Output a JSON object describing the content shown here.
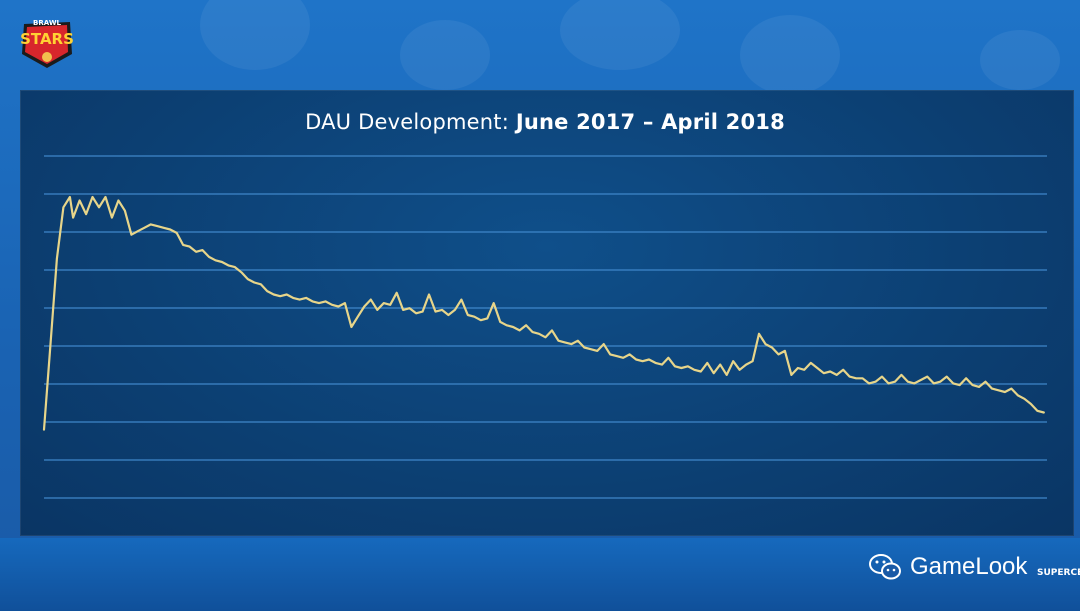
{
  "brand": {
    "logo_line1": "BRAWL",
    "logo_line2": "STARS",
    "watermark": "GameLook",
    "corner_logo": "SUPERCELL"
  },
  "colors": {
    "line": "#e7d58a",
    "grid": "#3f86c9",
    "panel": "#0c3f72"
  },
  "chart_data": {
    "type": "line",
    "title_prefix": "DAU Development: ",
    "title_bold": "June 2017 – April 2018",
    "xlabel": "",
    "ylabel": "",
    "grid": true,
    "gridlines": 10,
    "ylim": [
      0,
      10
    ],
    "xlim": [
      0,
      310
    ],
    "series": [
      {
        "values": [
          [
            0,
            2.0
          ],
          [
            2,
            4.5
          ],
          [
            4,
            7.0
          ],
          [
            6,
            8.5
          ],
          [
            8,
            8.8
          ],
          [
            9,
            8.2
          ],
          [
            11,
            8.7
          ],
          [
            13,
            8.3
          ],
          [
            15,
            8.8
          ],
          [
            17,
            8.5
          ],
          [
            19,
            8.8
          ],
          [
            21,
            8.2
          ],
          [
            23,
            8.7
          ],
          [
            25,
            8.4
          ],
          [
            27,
            7.7
          ],
          [
            29,
            7.8
          ],
          [
            31,
            7.9
          ],
          [
            33,
            8.0
          ],
          [
            35,
            7.95
          ],
          [
            37,
            7.9
          ],
          [
            39,
            7.85
          ],
          [
            41,
            7.75
          ],
          [
            43,
            7.4
          ],
          [
            45,
            7.35
          ],
          [
            47,
            7.2
          ],
          [
            49,
            7.25
          ],
          [
            51,
            7.05
          ],
          [
            53,
            6.95
          ],
          [
            55,
            6.9
          ],
          [
            57,
            6.8
          ],
          [
            59,
            6.75
          ],
          [
            61,
            6.6
          ],
          [
            63,
            6.4
          ],
          [
            65,
            6.3
          ],
          [
            67,
            6.25
          ],
          [
            69,
            6.05
          ],
          [
            71,
            5.95
          ],
          [
            73,
            5.9
          ],
          [
            75,
            5.95
          ],
          [
            77,
            5.85
          ],
          [
            79,
            5.8
          ],
          [
            81,
            5.85
          ],
          [
            83,
            5.75
          ],
          [
            85,
            5.7
          ],
          [
            87,
            5.75
          ],
          [
            89,
            5.65
          ],
          [
            91,
            5.6
          ],
          [
            93,
            5.7
          ],
          [
            95,
            5.0
          ],
          [
            97,
            5.3
          ],
          [
            99,
            5.6
          ],
          [
            101,
            5.8
          ],
          [
            103,
            5.5
          ],
          [
            105,
            5.7
          ],
          [
            107,
            5.65
          ],
          [
            109,
            6.0
          ],
          [
            111,
            5.5
          ],
          [
            113,
            5.55
          ],
          [
            115,
            5.4
          ],
          [
            117,
            5.45
          ],
          [
            119,
            5.95
          ],
          [
            121,
            5.45
          ],
          [
            123,
            5.5
          ],
          [
            125,
            5.35
          ],
          [
            127,
            5.5
          ],
          [
            129,
            5.8
          ],
          [
            131,
            5.35
          ],
          [
            133,
            5.3
          ],
          [
            135,
            5.2
          ],
          [
            137,
            5.25
          ],
          [
            139,
            5.7
          ],
          [
            141,
            5.15
          ],
          [
            143,
            5.05
          ],
          [
            145,
            5.0
          ],
          [
            147,
            4.9
          ],
          [
            149,
            5.05
          ],
          [
            151,
            4.85
          ],
          [
            153,
            4.8
          ],
          [
            155,
            4.7
          ],
          [
            157,
            4.9
          ],
          [
            159,
            4.6
          ],
          [
            161,
            4.55
          ],
          [
            163,
            4.5
          ],
          [
            165,
            4.6
          ],
          [
            167,
            4.4
          ],
          [
            169,
            4.35
          ],
          [
            171,
            4.3
          ],
          [
            173,
            4.5
          ],
          [
            175,
            4.2
          ],
          [
            177,
            4.15
          ],
          [
            179,
            4.1
          ],
          [
            181,
            4.2
          ],
          [
            183,
            4.05
          ],
          [
            185,
            4.0
          ],
          [
            187,
            4.05
          ],
          [
            189,
            3.95
          ],
          [
            191,
            3.9
          ],
          [
            193,
            4.1
          ],
          [
            195,
            3.85
          ],
          [
            197,
            3.8
          ],
          [
            199,
            3.85
          ],
          [
            201,
            3.75
          ],
          [
            203,
            3.7
          ],
          [
            205,
            3.95
          ],
          [
            207,
            3.65
          ],
          [
            209,
            3.9
          ],
          [
            211,
            3.6
          ],
          [
            213,
            4.0
          ],
          [
            215,
            3.75
          ],
          [
            217,
            3.9
          ],
          [
            219,
            4.0
          ],
          [
            221,
            4.8
          ],
          [
            223,
            4.5
          ],
          [
            225,
            4.4
          ],
          [
            227,
            4.2
          ],
          [
            229,
            4.3
          ],
          [
            231,
            3.6
          ],
          [
            233,
            3.8
          ],
          [
            235,
            3.75
          ],
          [
            237,
            3.95
          ],
          [
            239,
            3.8
          ],
          [
            241,
            3.65
          ],
          [
            243,
            3.7
          ],
          [
            245,
            3.6
          ],
          [
            247,
            3.75
          ],
          [
            249,
            3.55
          ],
          [
            251,
            3.5
          ],
          [
            253,
            3.5
          ],
          [
            255,
            3.35
          ],
          [
            257,
            3.4
          ],
          [
            259,
            3.55
          ],
          [
            261,
            3.35
          ],
          [
            263,
            3.4
          ],
          [
            265,
            3.6
          ],
          [
            267,
            3.4
          ],
          [
            269,
            3.35
          ],
          [
            271,
            3.45
          ],
          [
            273,
            3.55
          ],
          [
            275,
            3.35
          ],
          [
            277,
            3.4
          ],
          [
            279,
            3.55
          ],
          [
            281,
            3.35
          ],
          [
            283,
            3.3
          ],
          [
            285,
            3.5
          ],
          [
            287,
            3.3
          ],
          [
            289,
            3.25
          ],
          [
            291,
            3.4
          ],
          [
            293,
            3.2
          ],
          [
            295,
            3.15
          ],
          [
            297,
            3.1
          ],
          [
            299,
            3.2
          ],
          [
            301,
            3.0
          ],
          [
            303,
            2.9
          ],
          [
            305,
            2.75
          ],
          [
            307,
            2.55
          ],
          [
            309,
            2.5
          ]
        ]
      }
    ]
  }
}
